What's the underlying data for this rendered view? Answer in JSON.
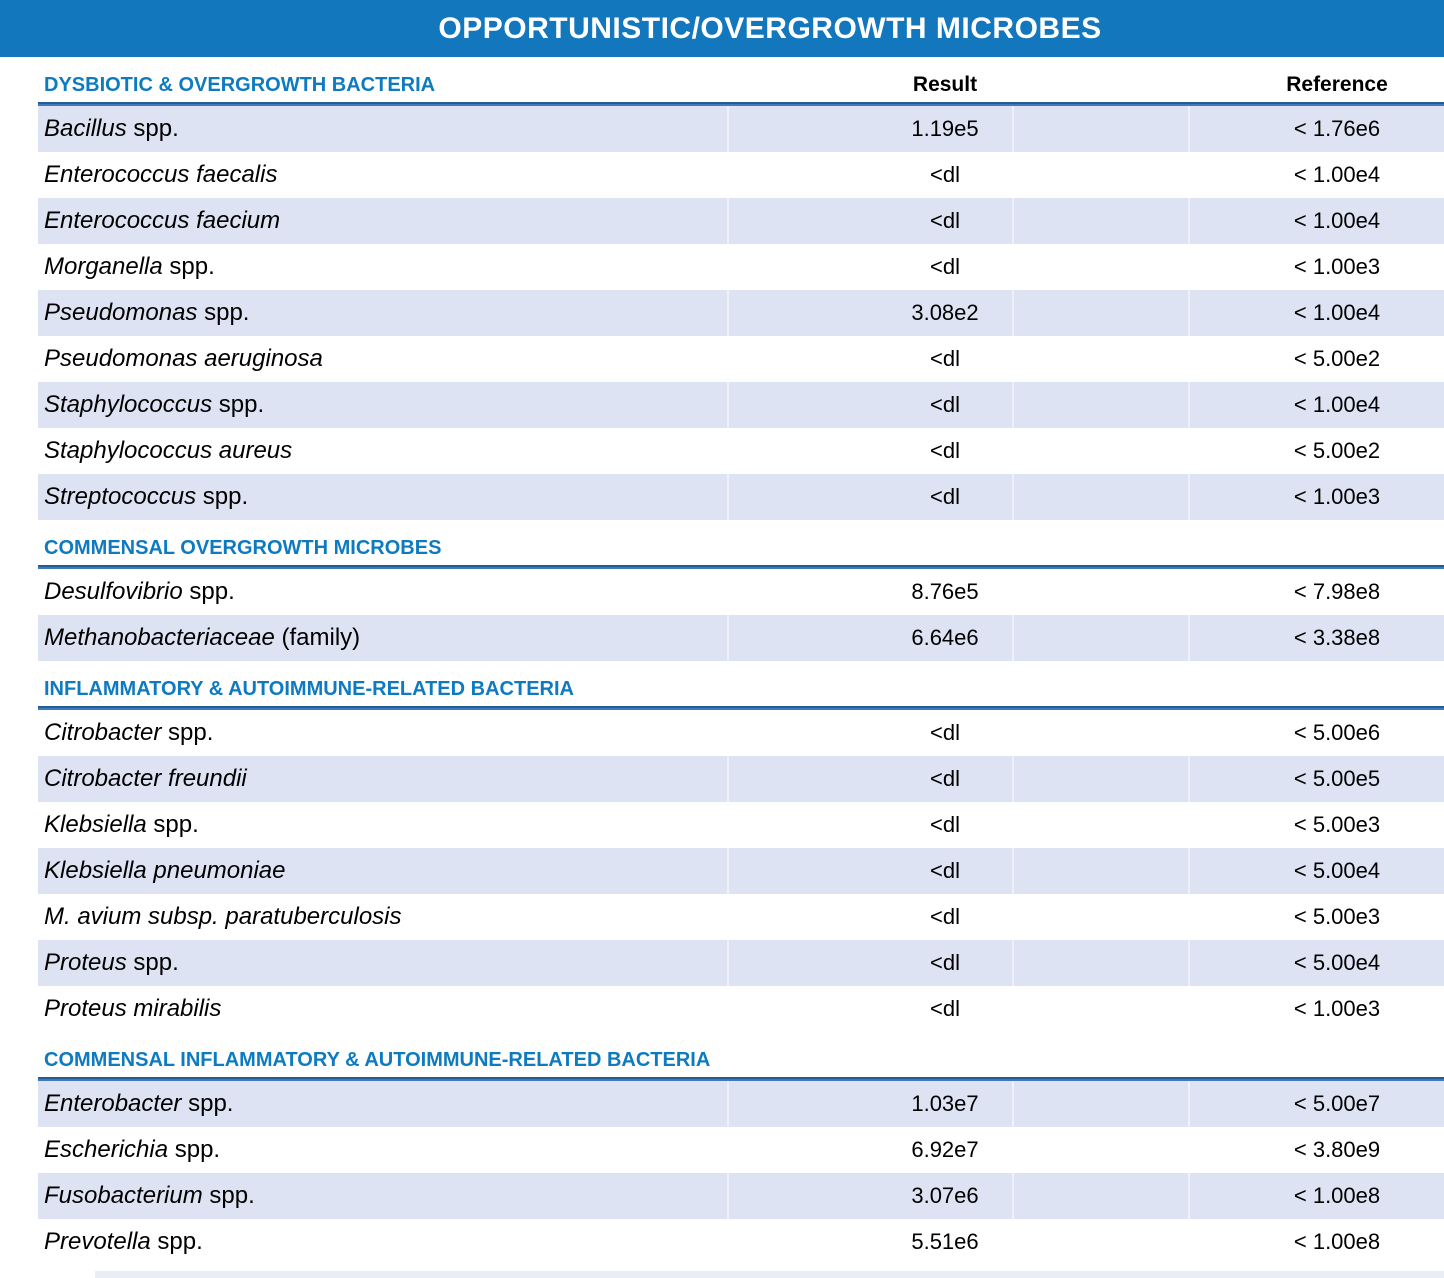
{
  "title": "OPPORTUNISTIC/OVERGROWTH MICROBES",
  "columns": {
    "result": "Result",
    "reference": "Reference"
  },
  "colors": {
    "banner_blue": "#1377bd",
    "section_title_blue": "#0e7ac0",
    "rule_blue": "#3c7bbd",
    "rule_edge_blue": "#285c8f",
    "shaded_row": "#dde3f2",
    "text": "#000000"
  },
  "sections": [
    {
      "heading": "DYSBIOTIC & OVERGROWTH BACTERIA",
      "show_columns": true,
      "rows": [
        {
          "name_italic": "Bacillus",
          "name_regular": " spp.",
          "result": "1.19e5",
          "reference": "< 1.76e6",
          "shaded": true
        },
        {
          "name_italic": "Enterococcus faecalis",
          "name_regular": "",
          "result": "<dl",
          "reference": "< 1.00e4",
          "shaded": false
        },
        {
          "name_italic": "Enterococcus faecium",
          "name_regular": "",
          "result": "<dl",
          "reference": "< 1.00e4",
          "shaded": true
        },
        {
          "name_italic": "Morganella",
          "name_regular": "  spp.",
          "result": "<dl",
          "reference": "< 1.00e3",
          "shaded": false
        },
        {
          "name_italic": "Pseudomonas",
          "name_regular": " spp.",
          "result": "3.08e2",
          "reference": "< 1.00e4",
          "shaded": true
        },
        {
          "name_italic": "Pseudomonas aeruginosa",
          "name_regular": "",
          "result": "<dl",
          "reference": "< 5.00e2",
          "shaded": false
        },
        {
          "name_italic": "Staphylococcus",
          "name_regular": " spp.",
          "result": "<dl",
          "reference": "< 1.00e4",
          "shaded": true
        },
        {
          "name_italic": "Staphylococcus aureus",
          "name_regular": "",
          "result": "<dl",
          "reference": "< 5.00e2",
          "shaded": false
        },
        {
          "name_italic": "Streptococcus",
          "name_regular": " spp.",
          "result": "<dl",
          "reference": "< 1.00e3",
          "shaded": true
        }
      ]
    },
    {
      "heading": "COMMENSAL OVERGROWTH MICROBES",
      "show_columns": false,
      "rows": [
        {
          "name_italic": "Desulfovibrio",
          "name_regular": " spp.",
          "result": "8.76e5",
          "reference": "< 7.98e8",
          "shaded": false
        },
        {
          "name_italic": "Methanobacteriaceae",
          "name_regular": " (family)",
          "result": "6.64e6",
          "reference": "< 3.38e8",
          "shaded": true
        }
      ]
    },
    {
      "heading": "INFLAMMATORY & AUTOIMMUNE-RELATED BACTERIA",
      "show_columns": false,
      "rows": [
        {
          "name_italic": "Citrobacter",
          "name_regular": " spp.",
          "result": "<dl",
          "reference": "< 5.00e6",
          "shaded": false
        },
        {
          "name_italic": "Citrobacter freundii",
          "name_regular": "",
          "result": "<dl",
          "reference": "< 5.00e5",
          "shaded": true
        },
        {
          "name_italic": "Klebsiella",
          "name_regular": " spp.",
          "result": "<dl",
          "reference": "< 5.00e3",
          "shaded": false
        },
        {
          "name_italic": "Klebsiella pneumoniae",
          "name_regular": "",
          "result": "<dl",
          "reference": "< 5.00e4",
          "shaded": true
        },
        {
          "name_italic": "M. avium subsp. paratuberculosis",
          "name_regular": "",
          "result": "<dl",
          "reference": "< 5.00e3",
          "shaded": false
        },
        {
          "name_italic": "Proteus",
          "name_regular": " spp.",
          "result": "<dl",
          "reference": "< 5.00e4",
          "shaded": true
        },
        {
          "name_italic": "Proteus mirabilis",
          "name_regular": "",
          "result": "<dl",
          "reference": "< 1.00e3",
          "shaded": false
        }
      ]
    },
    {
      "heading": "COMMENSAL INFLAMMATORY & AUTOIMMUNE-RELATED BACTERIA",
      "show_columns": false,
      "rows": [
        {
          "name_italic": "Enterobacter",
          "name_regular": " spp.",
          "result": "1.03e7",
          "reference": "< 5.00e7",
          "shaded": true
        },
        {
          "name_italic": "Escherichia",
          "name_regular": " spp.",
          "result": "6.92e7",
          "reference": "< 3.80e9",
          "shaded": false
        },
        {
          "name_italic": "Fusobacterium",
          "name_regular": " spp.",
          "result": "3.07e6",
          "reference": "< 1.00e8",
          "shaded": true
        },
        {
          "name_italic": "Prevotella",
          "name_regular": " spp.",
          "result": "5.51e6",
          "reference": "< 1.00e8",
          "shaded": false
        }
      ]
    }
  ]
}
